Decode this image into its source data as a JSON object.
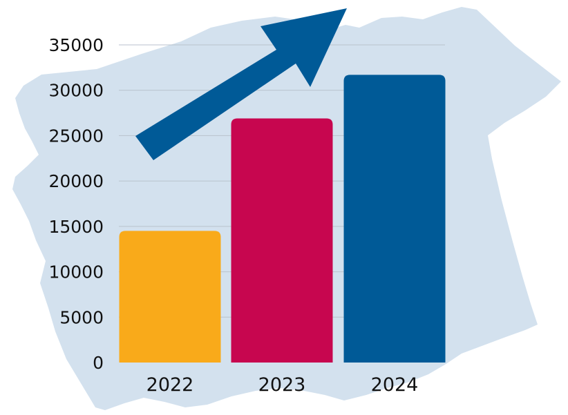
{
  "chart_data": {
    "type": "bar",
    "title": "",
    "xlabel": "",
    "ylabel": "",
    "categories": [
      "2022",
      "2023",
      "2024"
    ],
    "values": [
      14500,
      26900,
      31700
    ],
    "ylim": [
      0,
      35000
    ],
    "yticks": [
      "0",
      "5000",
      "10000",
      "15000",
      "20000",
      "25000",
      "30000",
      "35000"
    ],
    "grid": true,
    "legend": "none",
    "bar_colors": [
      "#F9AA1A",
      "#C7064F",
      "#005A97"
    ],
    "arrow_color": "#005A97",
    "background_shape_color": "#D3E1EE",
    "background_shape_icon": "map-silhouette"
  }
}
